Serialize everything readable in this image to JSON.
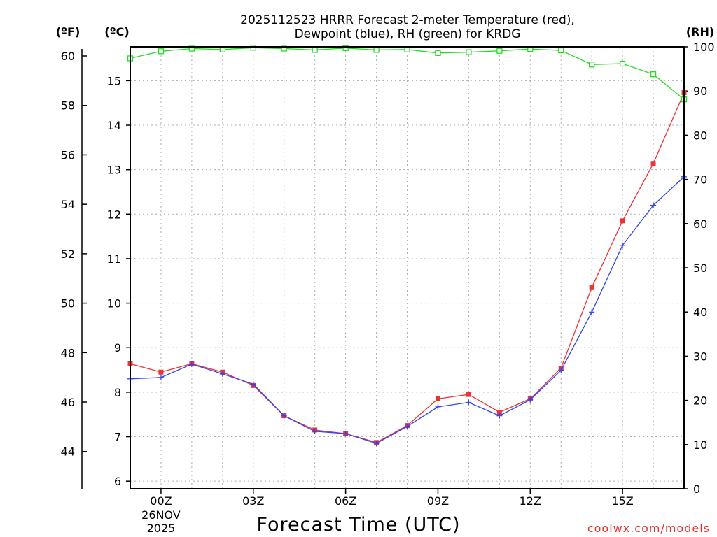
{
  "chart_data": {
    "type": "line",
    "title_line1": "2025112523 HRRR Forecast 2-meter Temperature (red),",
    "title_line2": "Dewpoint (blue), RH (green) for KRDG",
    "xlabel": "Forecast Time (UTC)",
    "credit": "coolwx.com/models",
    "unit_labels": {
      "fahrenheit": "(ºF)",
      "celsius": "(ºC)",
      "rh": "(RH)"
    },
    "x_range": [
      -1,
      17
    ],
    "x_ticks": [
      {
        "x": 0,
        "label": "00Z",
        "sub1": "26NOV",
        "sub2": "2025"
      },
      {
        "x": 3,
        "label": "03Z"
      },
      {
        "x": 6,
        "label": "06Z"
      },
      {
        "x": 9,
        "label": "09Z"
      },
      {
        "x": 12,
        "label": "12Z"
      },
      {
        "x": 15,
        "label": "15Z"
      }
    ],
    "celsius_axis": {
      "range": [
        5.83,
        15.76
      ],
      "ticks": [
        6,
        7,
        8,
        9,
        10,
        11,
        12,
        13,
        14,
        15
      ]
    },
    "fahrenheit_axis": {
      "ticks": [
        44,
        46,
        48,
        50,
        52,
        54,
        56,
        58,
        60
      ]
    },
    "rh_axis": {
      "range": [
        0,
        100
      ],
      "ticks": [
        0,
        10,
        20,
        30,
        40,
        50,
        60,
        70,
        80,
        90,
        100
      ]
    },
    "x": [
      -1,
      0,
      1,
      2,
      3,
      4,
      5,
      6,
      7,
      8,
      9,
      10,
      11,
      12,
      13,
      14,
      15,
      16,
      17
    ],
    "series": [
      {
        "name": "Temperature",
        "axis": "celsius",
        "color": "#ee3333",
        "marker": "filled-square",
        "values": [
          8.64,
          8.45,
          8.64,
          8.45,
          8.15,
          7.47,
          7.15,
          7.07,
          6.87,
          7.25,
          7.85,
          7.95,
          7.55,
          7.85,
          8.54,
          10.35,
          11.85,
          13.14,
          14.73
        ]
      },
      {
        "name": "Dewpoint",
        "axis": "celsius",
        "color": "#3344ee",
        "marker": "plus",
        "values": [
          8.3,
          8.33,
          8.63,
          8.41,
          8.18,
          7.47,
          7.12,
          7.07,
          6.85,
          7.23,
          7.67,
          7.77,
          7.47,
          7.83,
          8.49,
          9.8,
          11.3,
          12.2,
          12.84
        ]
      },
      {
        "name": "RH",
        "axis": "rh",
        "color": "#22dd22",
        "marker": "open-square",
        "values": [
          97.4,
          99.0,
          99.6,
          99.4,
          99.8,
          99.6,
          99.3,
          99.7,
          99.3,
          99.4,
          98.6,
          98.8,
          99.1,
          99.5,
          99.2,
          96.0,
          96.2,
          93.8,
          88.1
        ]
      }
    ]
  }
}
